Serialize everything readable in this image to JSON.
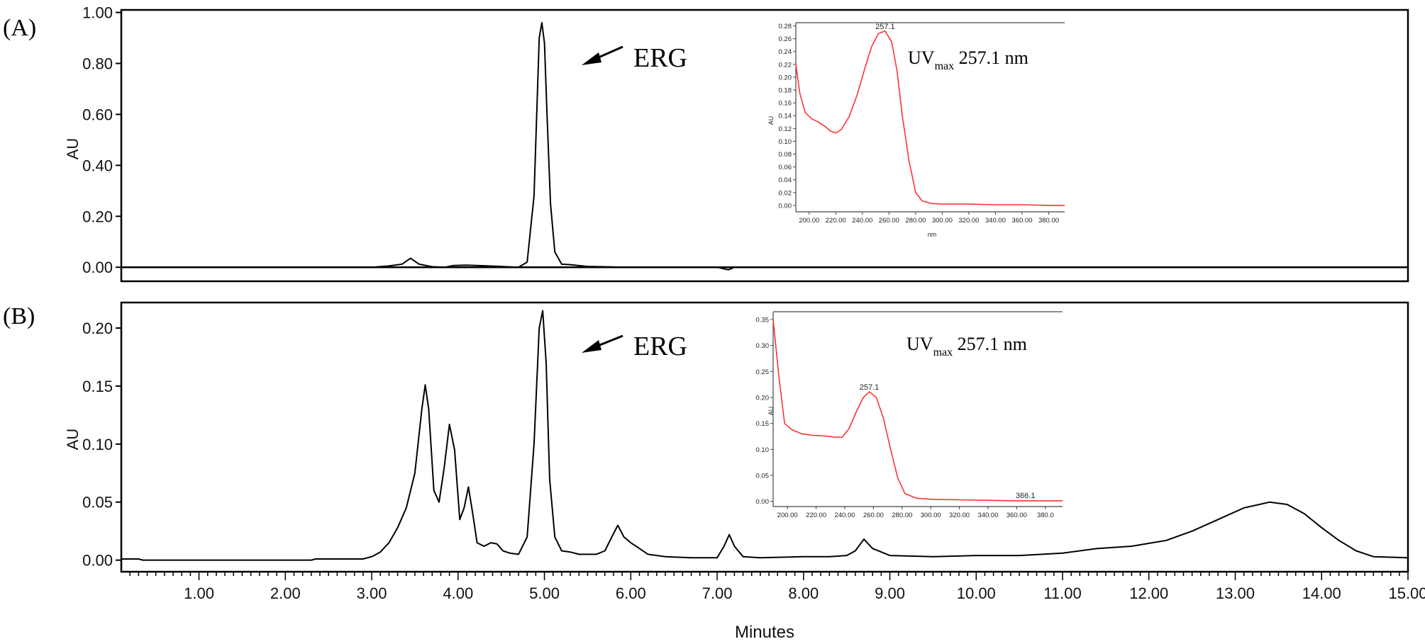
{
  "chart_data": [
    {
      "type": "line",
      "panel_label": "(A)",
      "ylabel": "AU",
      "xlabel": "",
      "xlim": [
        0.1,
        15.0
      ],
      "ylim": [
        -0.055,
        1.01
      ],
      "y_ticks": [
        "0.00",
        "0.20",
        "0.40",
        "0.60",
        "0.80",
        "1.00"
      ],
      "y_tick_values": [
        0,
        0.2,
        0.4,
        0.6,
        0.8,
        1.0
      ],
      "annotation": "ERG",
      "series": [
        {
          "color": "#000000",
          "x": [
            0.1,
            3.0,
            3.2,
            3.35,
            3.45,
            3.55,
            3.7,
            3.85,
            3.95,
            4.1,
            4.3,
            4.5,
            4.7,
            4.8,
            4.88,
            4.94,
            4.97,
            5.0,
            5.03,
            5.07,
            5.12,
            5.2,
            5.3,
            5.5,
            6.0,
            7.0,
            7.13,
            7.2,
            8.0,
            10.0,
            12.0,
            15.0
          ],
          "y": [
            0,
            0,
            0.005,
            0.012,
            0.035,
            0.012,
            0.002,
            0.0,
            0.007,
            0.008,
            0.006,
            0.003,
            0.0,
            0.02,
            0.28,
            0.9,
            0.96,
            0.88,
            0.6,
            0.25,
            0.06,
            0.012,
            0.01,
            0.003,
            0.0,
            0.0,
            -0.01,
            0.0,
            0.0,
            0.0,
            0.0,
            0.0
          ]
        }
      ],
      "inset": {
        "type": "line",
        "xlabel": "nm",
        "ylabel": "AU",
        "xlim": [
          190,
          392
        ],
        "ylim": [
          -0.01,
          0.285
        ],
        "x_ticks": [
          "200.00",
          "220.00",
          "240.00",
          "260.00",
          "280.00",
          "300.00",
          "320.00",
          "340.00",
          "360.00",
          "380.00"
        ],
        "x_tick_values": [
          200,
          220,
          240,
          260,
          280,
          300,
          320,
          340,
          360,
          380
        ],
        "y_ticks": [
          "0.00",
          "0.02",
          "0.04",
          "0.06",
          "0.08",
          "0.10",
          "0.12",
          "0.14",
          "0.16",
          "0.18",
          "0.20",
          "0.22",
          "0.24",
          "0.26",
          "0.28"
        ],
        "y_tick_values": [
          0,
          0.02,
          0.04,
          0.06,
          0.08,
          0.1,
          0.12,
          0.14,
          0.16,
          0.18,
          0.2,
          0.22,
          0.24,
          0.26,
          0.28
        ],
        "peak_label": "257.1",
        "peak_x": 257.1,
        "peak_y": 0.272,
        "uv_text": {
          "prefix": "UV",
          "sub": "max",
          "value": " 257.1 nm"
        },
        "series": [
          {
            "color": "#ff3333",
            "x": [
              190,
              193,
              197,
              202,
              207,
              212,
              216,
              220,
              224,
              230,
              236,
              242,
              247,
              252,
              257.1,
              262,
              266,
              270,
              275,
              280,
              285,
              292,
              300,
              320,
              340,
              360,
              380,
              392
            ],
            "y": [
              0.22,
              0.175,
              0.145,
              0.135,
              0.13,
              0.123,
              0.116,
              0.113,
              0.118,
              0.138,
              0.172,
              0.215,
              0.248,
              0.268,
              0.272,
              0.255,
              0.21,
              0.14,
              0.07,
              0.02,
              0.007,
              0.003,
              0.002,
              0.002,
              0.001,
              0.001,
              0.0,
              0.0
            ]
          }
        ]
      }
    },
    {
      "type": "line",
      "panel_label": "(B)",
      "ylabel": "AU",
      "xlabel": "Minutes",
      "xlim": [
        0.1,
        15.0
      ],
      "ylim": [
        -0.01,
        0.222
      ],
      "y_ticks": [
        "0.00",
        "0.05",
        "0.10",
        "0.15",
        "0.20"
      ],
      "y_tick_values": [
        0,
        0.05,
        0.1,
        0.15,
        0.2
      ],
      "x_ticks": [
        "1.00",
        "2.00",
        "3.00",
        "4.00",
        "5.00",
        "6.00",
        "7.00",
        "8.00",
        "9.00",
        "10.00",
        "11.00",
        "12.00",
        "13.00",
        "14.00",
        "15.00"
      ],
      "x_tick_values": [
        1,
        2,
        3,
        4,
        5,
        6,
        7,
        8,
        9,
        10,
        11,
        12,
        13,
        14,
        15
      ],
      "annotation": "ERG",
      "series": [
        {
          "color": "#000000",
          "x": [
            0.1,
            0.3,
            0.35,
            2.3,
            2.35,
            2.9,
            3.0,
            3.1,
            3.2,
            3.3,
            3.4,
            3.5,
            3.58,
            3.62,
            3.66,
            3.72,
            3.78,
            3.84,
            3.9,
            3.96,
            4.02,
            4.07,
            4.12,
            4.17,
            4.22,
            4.3,
            4.38,
            4.45,
            4.52,
            4.6,
            4.7,
            4.8,
            4.88,
            4.94,
            4.98,
            5.02,
            5.06,
            5.12,
            5.2,
            5.3,
            5.4,
            5.5,
            5.6,
            5.7,
            5.78,
            5.85,
            5.92,
            6.0,
            6.1,
            6.2,
            6.4,
            6.7,
            7.0,
            7.08,
            7.14,
            7.2,
            7.3,
            7.5,
            8.0,
            8.2,
            8.3,
            8.5,
            8.6,
            8.7,
            8.8,
            9.0,
            9.5,
            10.0,
            10.5,
            11.0,
            11.4,
            11.8,
            12.2,
            12.5,
            12.8,
            13.1,
            13.4,
            13.6,
            13.8,
            14.0,
            14.2,
            14.4,
            14.6,
            15.0
          ],
          "y": [
            0.001,
            0.001,
            0.0,
            0.0,
            0.001,
            0.001,
            0.003,
            0.007,
            0.015,
            0.028,
            0.045,
            0.075,
            0.13,
            0.151,
            0.13,
            0.06,
            0.05,
            0.08,
            0.117,
            0.095,
            0.035,
            0.045,
            0.063,
            0.04,
            0.015,
            0.012,
            0.015,
            0.014,
            0.008,
            0.006,
            0.005,
            0.02,
            0.1,
            0.2,
            0.215,
            0.17,
            0.07,
            0.02,
            0.008,
            0.007,
            0.005,
            0.005,
            0.005,
            0.008,
            0.02,
            0.03,
            0.02,
            0.015,
            0.01,
            0.005,
            0.003,
            0.002,
            0.002,
            0.012,
            0.022,
            0.012,
            0.003,
            0.002,
            0.003,
            0.003,
            0.003,
            0.004,
            0.008,
            0.018,
            0.01,
            0.004,
            0.003,
            0.004,
            0.004,
            0.006,
            0.01,
            0.012,
            0.017,
            0.025,
            0.035,
            0.045,
            0.05,
            0.048,
            0.04,
            0.028,
            0.017,
            0.008,
            0.003,
            0.002
          ]
        }
      ],
      "inset": {
        "type": "line",
        "xlabel": "",
        "ylabel": "AU",
        "xlim": [
          190,
          392
        ],
        "ylim": [
          -0.01,
          0.365
        ],
        "x_ticks": [
          "200.00",
          "220.00",
          "240.00",
          "260.00",
          "280.00",
          "300.00",
          "320.00",
          "340.00",
          "360.00",
          "380.0"
        ],
        "x_tick_values": [
          200,
          220,
          240,
          260,
          280,
          300,
          320,
          340,
          360,
          380
        ],
        "y_ticks": [
          "0.00",
          "0.05",
          "0.10",
          "0.15",
          "0.20",
          "0.25",
          "0.30",
          "0.35"
        ],
        "y_tick_values": [
          0,
          0.05,
          0.1,
          0.15,
          0.2,
          0.25,
          0.3,
          0.35
        ],
        "peak_label": "257.1",
        "peak_x": 257.1,
        "peak_y": 0.211,
        "secondary_label": "366.1",
        "secondary_x": 366.1,
        "secondary_y": 0.001,
        "uv_text": {
          "prefix": "UV",
          "sub": "max",
          "value": " 257.1 nm"
        },
        "series": [
          {
            "color": "#ff3333",
            "x": [
              190,
              194,
              198,
              203,
              210,
              218,
              226,
              232,
              238,
              243,
              248,
              253,
              257.1,
              262,
              267,
              272,
              277,
              282,
              290,
              300,
              320,
              340,
              360,
              380,
              392
            ],
            "y": [
              0.35,
              0.24,
              0.15,
              0.138,
              0.13,
              0.127,
              0.126,
              0.124,
              0.123,
              0.14,
              0.172,
              0.2,
              0.211,
              0.2,
              0.16,
              0.1,
              0.045,
              0.015,
              0.006,
              0.004,
              0.003,
              0.002,
              0.001,
              0.001,
              0.001
            ]
          }
        ]
      }
    }
  ]
}
